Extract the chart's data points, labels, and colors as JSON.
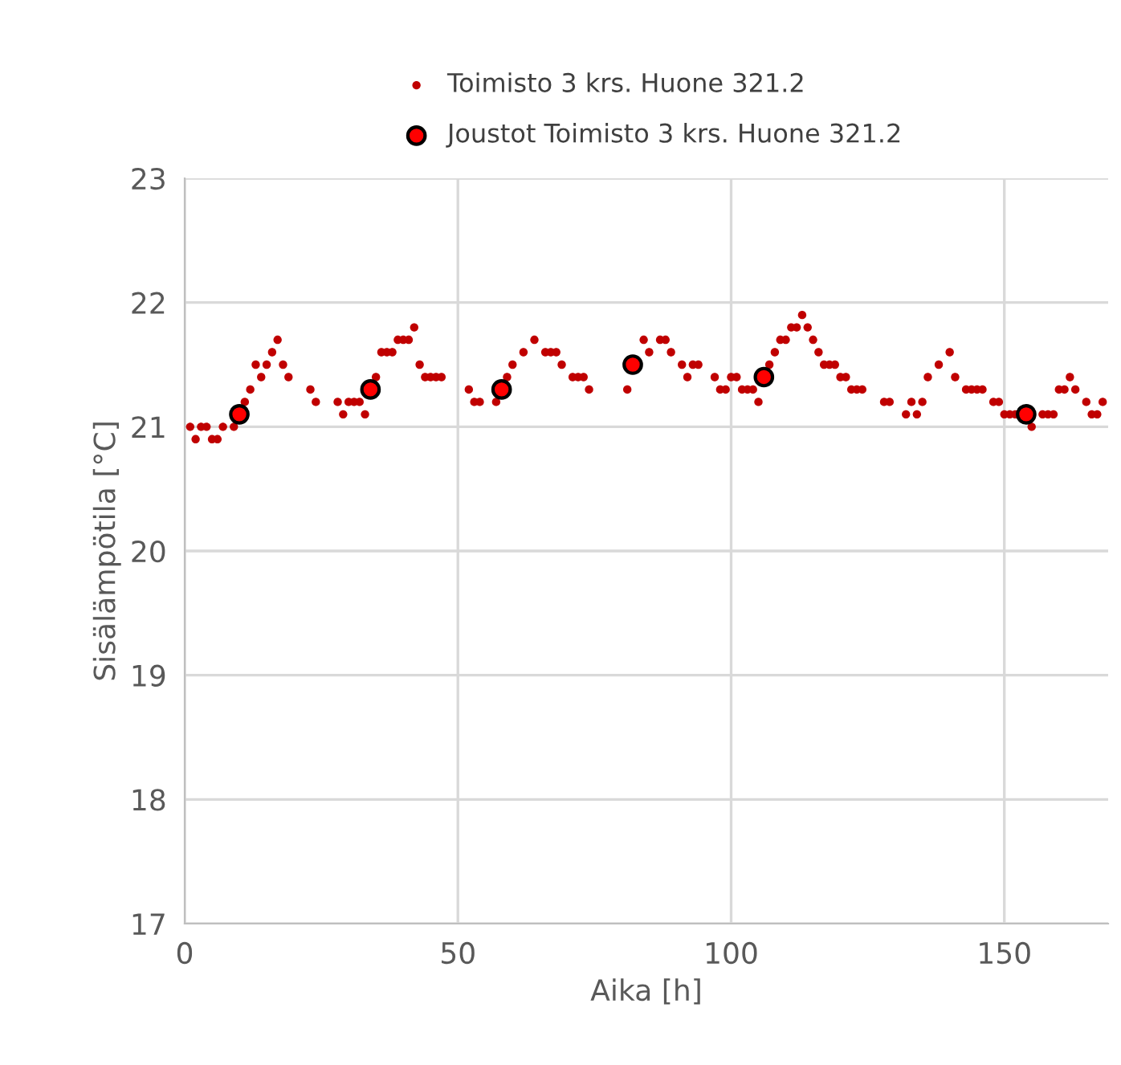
{
  "chart_data": {
    "type": "scatter",
    "xlabel": "Aika [h]",
    "ylabel": "Sisälämpötila [°C]",
    "xlim": [
      0,
      169
    ],
    "xticks": [
      0,
      50,
      100,
      150
    ],
    "ylim": [
      17,
      23
    ],
    "yticks": [
      17,
      18,
      19,
      20,
      21,
      22,
      23
    ],
    "grid": true,
    "legend": "top",
    "series": [
      {
        "name": "Toimisto 3 krs. Huone 321.2",
        "color": "#c00000",
        "marker": "circle",
        "x": [
          1,
          2,
          3,
          4,
          5,
          6,
          7,
          9,
          11,
          12,
          13,
          14,
          15,
          16,
          17,
          18,
          19,
          23,
          24,
          28,
          29,
          30,
          31,
          32,
          33,
          35,
          36,
          37,
          38,
          39,
          40,
          41,
          42,
          43,
          44,
          45,
          46,
          47,
          52,
          53,
          54,
          57,
          59,
          60,
          62,
          64,
          66,
          67,
          68,
          69,
          71,
          72,
          73,
          74,
          81,
          84,
          85,
          87,
          88,
          89,
          91,
          92,
          93,
          94,
          97,
          98,
          99,
          100,
          101,
          102,
          103,
          104,
          105,
          107,
          108,
          109,
          110,
          111,
          112,
          113,
          114,
          115,
          116,
          117,
          118,
          119,
          120,
          121,
          122,
          123,
          124,
          128,
          129,
          132,
          133,
          134,
          135,
          136,
          138,
          140,
          141,
          143,
          144,
          145,
          146,
          148,
          149,
          150,
          151,
          152,
          155,
          157,
          158,
          159,
          160,
          161,
          162,
          163,
          165,
          166,
          167,
          168
        ],
        "values": [
          21.0,
          20.9,
          21.0,
          21.0,
          20.9,
          20.9,
          21.0,
          21.0,
          21.2,
          21.3,
          21.5,
          21.4,
          21.5,
          21.6,
          21.7,
          21.5,
          21.4,
          21.3,
          21.2,
          21.2,
          21.1,
          21.2,
          21.2,
          21.2,
          21.1,
          21.4,
          21.6,
          21.6,
          21.6,
          21.7,
          21.7,
          21.7,
          21.8,
          21.5,
          21.4,
          21.4,
          21.4,
          21.4,
          21.3,
          21.2,
          21.2,
          21.2,
          21.4,
          21.5,
          21.6,
          21.7,
          21.6,
          21.6,
          21.6,
          21.5,
          21.4,
          21.4,
          21.4,
          21.3,
          21.3,
          21.7,
          21.6,
          21.7,
          21.7,
          21.6,
          21.5,
          21.4,
          21.5,
          21.5,
          21.4,
          21.3,
          21.3,
          21.4,
          21.4,
          21.3,
          21.3,
          21.3,
          21.2,
          21.5,
          21.6,
          21.7,
          21.7,
          21.8,
          21.8,
          21.9,
          21.8,
          21.7,
          21.6,
          21.5,
          21.5,
          21.5,
          21.4,
          21.4,
          21.3,
          21.3,
          21.3,
          21.2,
          21.2,
          21.1,
          21.2,
          21.1,
          21.2,
          21.4,
          21.5,
          21.6,
          21.4,
          21.3,
          21.3,
          21.3,
          21.3,
          21.2,
          21.2,
          21.1,
          21.1,
          21.1,
          21.0,
          21.1,
          21.1,
          21.1,
          21.3,
          21.3,
          21.4,
          21.3,
          21.2,
          21.1,
          21.1,
          21.2
        ]
      },
      {
        "name": "Joustot Toimisto 3 krs. Huone 321.2",
        "color": "#ff0000",
        "marker": "circle",
        "x": [
          10,
          34,
          58,
          82,
          106,
          154
        ],
        "values": [
          21.1,
          21.3,
          21.3,
          21.5,
          21.4,
          21.1
        ]
      }
    ]
  }
}
